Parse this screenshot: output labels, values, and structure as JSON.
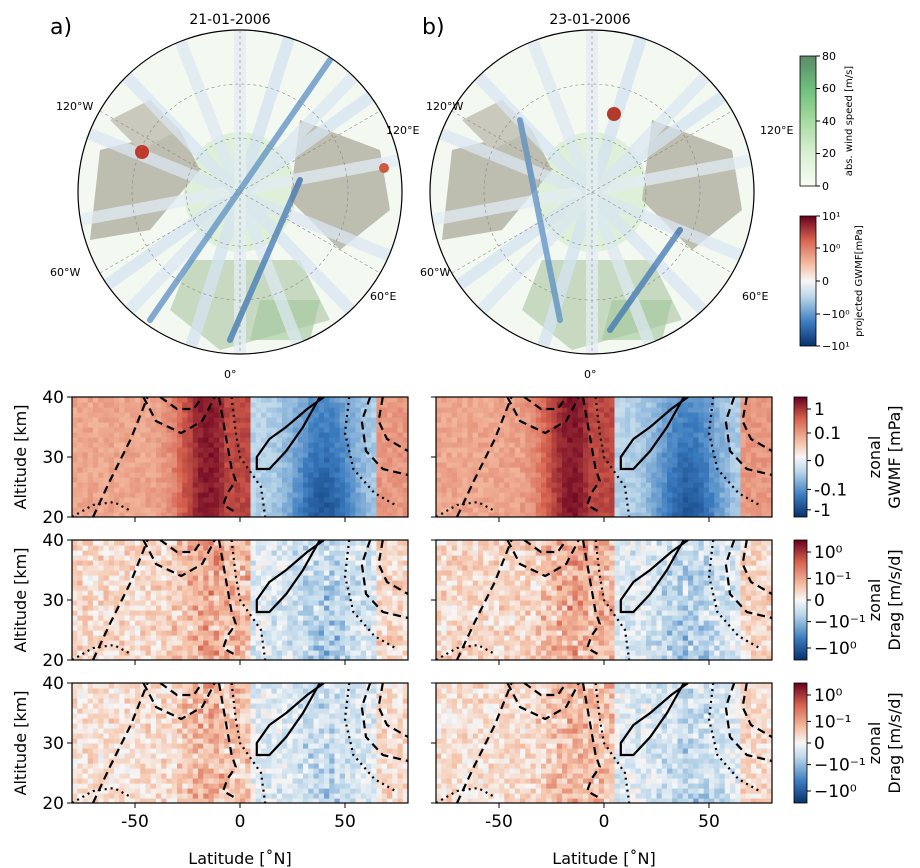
{
  "figure": {
    "panel_a_letter": "a)",
    "panel_b_letter": "b)",
    "date_a": "21-01-2006",
    "date_b": "23-01-2006"
  },
  "maps": {
    "lon_labels": [
      "120°W",
      "120°E",
      "60°W",
      "60°E",
      "0°"
    ],
    "wind_colorbar": {
      "label": "abs. wind speed [m/s]",
      "ticks": [
        "0",
        "20",
        "40",
        "60",
        "80"
      ],
      "range": [
        0,
        80
      ],
      "colormap": "Greens"
    },
    "gwmf_colorbar": {
      "label": "projected GWMF[mPa]",
      "ticks": [
        "10¹",
        "10⁰",
        "0",
        "−10⁰",
        "−10¹"
      ],
      "scale": "symlog",
      "colormap": "RdBu_r"
    }
  },
  "chart_data": {
    "type": "heatmap",
    "xlabel": "Latitude [˚N]",
    "ylabel": "Altitude [km]",
    "xlim": [
      -80,
      80
    ],
    "ylim": [
      20,
      40
    ],
    "x_ticks": [
      "-50",
      "0",
      "50"
    ],
    "y_ticks": [
      "20",
      "30",
      "40"
    ],
    "rows": [
      {
        "colorbar_label_1": "zonal",
        "colorbar_label_2": "GWMF [mPa]",
        "colorbar_ticks": [
          "1",
          "0.1",
          "0",
          "-0.1",
          "-1"
        ],
        "scale": "symlog",
        "colormap": "RdBu_r"
      },
      {
        "colorbar_label_1": "zonal",
        "colorbar_label_2": "Drag [m/s/d]",
        "colorbar_ticks": [
          "10⁰",
          "10⁻¹",
          "0",
          "−10⁻¹",
          "−10⁰"
        ],
        "scale": "symlog",
        "colormap": "RdBu_r"
      },
      {
        "colorbar_label_1": "zonal",
        "colorbar_label_2": "Drag [m/s/d]",
        "colorbar_ticks": [
          "10⁰",
          "10⁻¹",
          "0",
          "−10⁻¹",
          "−10⁰"
        ],
        "scale": "symlog",
        "colormap": "RdBu_r"
      }
    ],
    "grid": false
  }
}
